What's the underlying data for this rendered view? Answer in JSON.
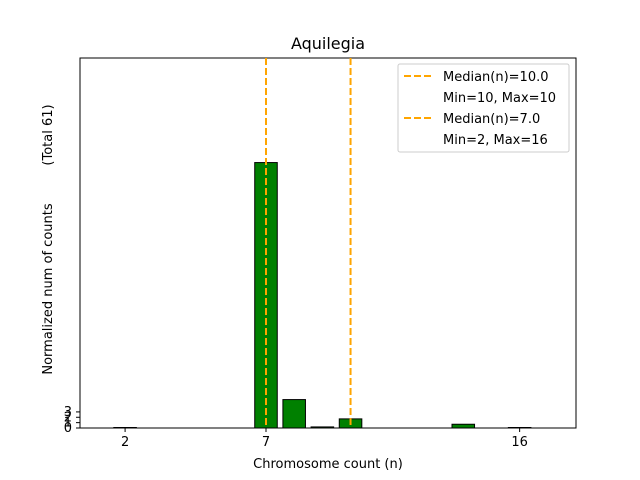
{
  "chart_data": {
    "type": "bar",
    "title": "Aquilegia",
    "xlabel": "Chromosome count (n)",
    "ylabel": "Normalized num of counts",
    "ylabel_note": "(Total 61)",
    "xlim": [
      0.4,
      18.0
    ],
    "ylim": [
      0,
      69
    ],
    "x_ticks": [
      2,
      7,
      16
    ],
    "y_ticks": [
      0,
      1,
      2,
      3
    ],
    "bars": [
      {
        "x": 2,
        "value": 0.05
      },
      {
        "x": 7,
        "value": 49.5
      },
      {
        "x": 8,
        "value": 5.3
      },
      {
        "x": 9,
        "value": 0.2
      },
      {
        "x": 10,
        "value": 1.7
      },
      {
        "x": 14,
        "value": 0.7
      },
      {
        "x": 16,
        "value": 0.05
      }
    ],
    "bar_color": "#008000",
    "bar_edge": "#000000",
    "median_lines": [
      {
        "x": 7,
        "color": "#FFA500"
      },
      {
        "x": 10,
        "color": "#FFA500"
      }
    ],
    "legend": {
      "placement": "upper-right",
      "entries": [
        {
          "label": "Median(n)=10.0",
          "marker": "dashed",
          "color": "#FFA500"
        },
        {
          "label": "Min=10, Max=10",
          "marker": "none"
        },
        {
          "label": "Median(n)=7.0",
          "marker": "dashed",
          "color": "#FFA500"
        },
        {
          "label": "Min=2, Max=16",
          "marker": "none"
        }
      ]
    }
  }
}
